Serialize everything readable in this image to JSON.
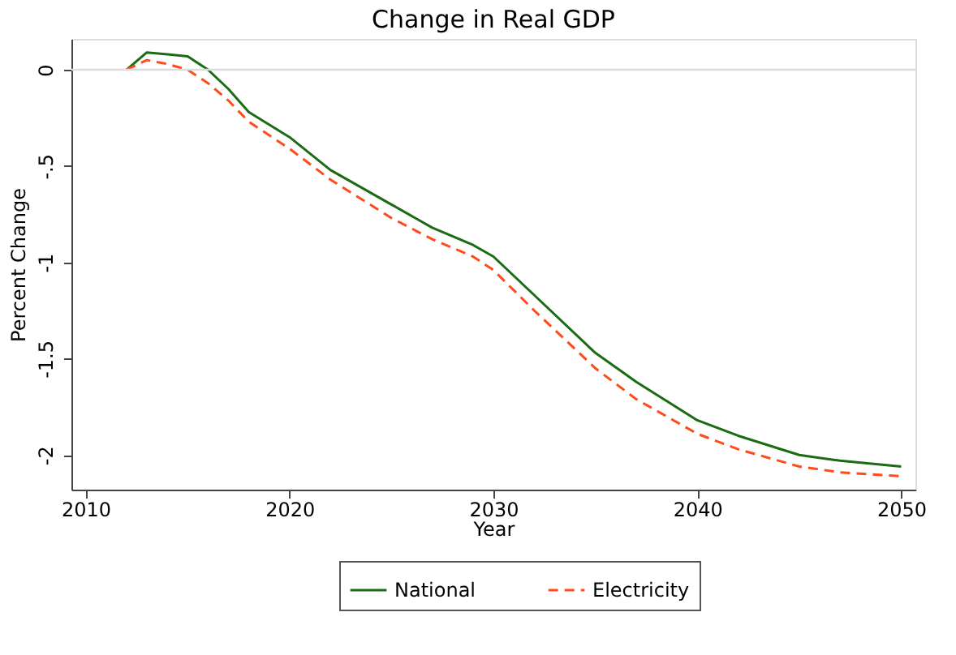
{
  "chart_data": {
    "type": "line",
    "title": "Change in Real GDP",
    "xlabel": "Year",
    "ylabel": "Percent Change",
    "xlim": [
      2009.3,
      2050.7
    ],
    "xticks": [
      2010,
      2020,
      2030,
      2040,
      2050
    ],
    "ylim": [
      -2.18,
      0.16
    ],
    "yticks": [
      {
        "value": 0,
        "label": "0"
      },
      {
        "value": -0.5,
        "label": "-.5"
      },
      {
        "value": -1,
        "label": "-1"
      },
      {
        "value": -1.5,
        "label": "-1.5"
      },
      {
        "value": -2,
        "label": "-2"
      }
    ],
    "grid": false,
    "legend": "bottom",
    "ref_lines": [
      {
        "axis": "y",
        "value": 0,
        "color": "#dcdcdc"
      }
    ],
    "series": [
      {
        "name": "National",
        "color": "#1a6b12",
        "line_style": "solid",
        "x": [
          2012,
          2013,
          2014,
          2015,
          2016,
          2017,
          2018,
          2020,
          2022,
          2025,
          2027,
          2029,
          2030,
          2032,
          2035,
          2037,
          2040,
          2042,
          2045,
          2047,
          2050
        ],
        "values": [
          0,
          0.09,
          0.08,
          0.07,
          0.0,
          -0.1,
          -0.22,
          -0.35,
          -0.52,
          -0.7,
          -0.82,
          -0.91,
          -0.97,
          -1.17,
          -1.47,
          -1.62,
          -1.82,
          -1.9,
          -2.0,
          -2.03,
          -2.06
        ]
      },
      {
        "name": "Electricity",
        "color": "#ff4a1a",
        "line_style": "dashed",
        "x": [
          2012,
          2013,
          2014,
          2015,
          2016,
          2017,
          2018,
          2020,
          2022,
          2025,
          2027,
          2029,
          2030,
          2032,
          2035,
          2037,
          2040,
          2042,
          2045,
          2047,
          2050
        ],
        "values": [
          0,
          0.05,
          0.03,
          0.0,
          -0.07,
          -0.16,
          -0.27,
          -0.41,
          -0.57,
          -0.77,
          -0.88,
          -0.97,
          -1.04,
          -1.25,
          -1.55,
          -1.71,
          -1.89,
          -1.97,
          -2.06,
          -2.09,
          -2.11
        ]
      }
    ]
  }
}
